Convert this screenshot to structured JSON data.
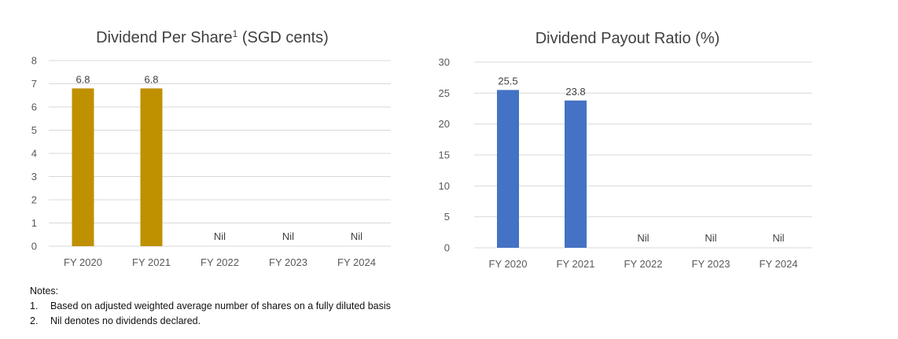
{
  "chart_data": [
    {
      "type": "bar",
      "title": "Dividend Per Share",
      "title_sup": "1",
      "title_suffix": " (SGD cents)",
      "categories": [
        "FY 2020",
        "FY 2021",
        "FY 2022",
        "FY 2023",
        "FY 2024"
      ],
      "values": [
        6.8,
        6.8,
        0,
        0,
        0
      ],
      "data_labels": [
        "6.8",
        "6.8",
        "Nil",
        "Nil",
        "Nil"
      ],
      "ylim": [
        0,
        8
      ],
      "yticks": [
        0,
        1,
        2,
        3,
        4,
        5,
        6,
        7,
        8
      ],
      "grid": true,
      "color": "#bf9000"
    },
    {
      "type": "bar",
      "title": "Dividend Payout Ratio (%)",
      "title_sup": "",
      "title_suffix": "",
      "categories": [
        "FY 2020",
        "FY 2021",
        "FY 2022",
        "FY 2023",
        "FY 2024"
      ],
      "values": [
        25.5,
        23.8,
        0,
        0,
        0
      ],
      "data_labels": [
        "25.5",
        "23.8",
        "Nil",
        "Nil",
        "Nil"
      ],
      "ylim": [
        0,
        30
      ],
      "yticks": [
        0,
        5,
        10,
        15,
        20,
        25,
        30
      ],
      "grid": true,
      "color": "#4472c4"
    }
  ],
  "notes": {
    "heading": "Notes:",
    "items": [
      {
        "num": "1.",
        "text": "Based on adjusted weighted average number of shares on a fully diluted basis"
      },
      {
        "num": "2.",
        "text": "Nil denotes no dividends declared."
      }
    ]
  }
}
